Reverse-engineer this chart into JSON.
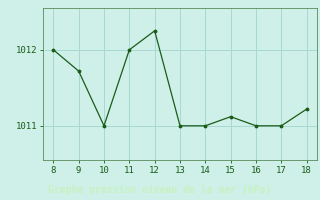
{
  "x": [
    8,
    9,
    10,
    11,
    12,
    13,
    14,
    15,
    16,
    17,
    18
  ],
  "y": [
    1012.0,
    1011.72,
    1011.0,
    1012.0,
    1012.25,
    1011.0,
    1011.0,
    1011.12,
    1011.0,
    1011.0,
    1011.22
  ],
  "line_color": "#1a5c1a",
  "marker_color": "#1a5c1a",
  "background_color": "#cef0e8",
  "grid_color": "#a8d8d0",
  "bottom_bar_color": "#2a7a2a",
  "xlabel": "Graphe pression niveau de la mer (hPa)",
  "xlabel_color": "#c8f0c0",
  "ytick_labels": [
    "1011",
    "1012"
  ],
  "ytick_values": [
    1011,
    1012
  ],
  "ylim": [
    1010.55,
    1012.55
  ],
  "xlim": [
    7.6,
    18.4
  ],
  "xticks": [
    8,
    9,
    10,
    11,
    12,
    13,
    14,
    15,
    16,
    17,
    18
  ],
  "tick_color": "#1a5c1a",
  "spine_color": "#5a8a5a"
}
